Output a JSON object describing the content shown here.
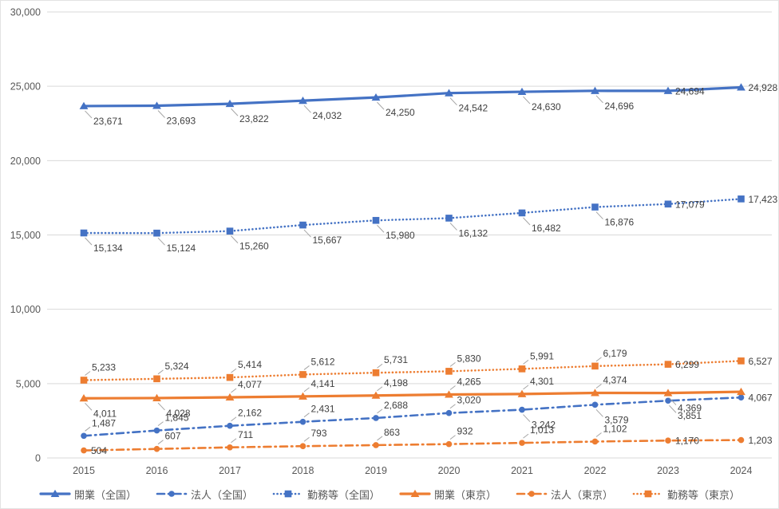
{
  "chart_data": {
    "type": "line",
    "title": "",
    "categories": [
      "2015",
      "2016",
      "2017",
      "2018",
      "2019",
      "2020",
      "2021",
      "2022",
      "2023",
      "2024"
    ],
    "y_axis": {
      "min": 0,
      "max": 30000,
      "step": 5000,
      "tick_labels": [
        "0",
        "5,000",
        "10,000",
        "15,000",
        "20,000",
        "25,000",
        "30,000"
      ]
    },
    "grid": true,
    "legend_position": "bottom",
    "colors": {
      "blue": "#4472C4",
      "orange": "#ED7D31",
      "gridline": "#D9D9D9",
      "axis_text": "#595959",
      "label_text": "#404040",
      "leader_line": "#A6A6A6"
    },
    "series": [
      {
        "name": "開業（全国）",
        "color": "#4472C4",
        "line_style": "solid",
        "marker": "triangle",
        "values": [
          23671,
          23693,
          23822,
          24032,
          24250,
          24542,
          24630,
          24696,
          24694,
          24928
        ],
        "labels": [
          "23,671",
          "23,693",
          "23,822",
          "24,032",
          "24,250",
          "24,542",
          "24,630",
          "24,696",
          "24,694",
          "24,928"
        ],
        "label_positions": [
          "b",
          "b",
          "b",
          "b",
          "b",
          "b",
          "b",
          "b",
          "r",
          "r"
        ]
      },
      {
        "name": "法人（全国）",
        "color": "#4472C4",
        "line_style": "dash-dot",
        "marker": "circle",
        "values": [
          1487,
          1845,
          2162,
          2431,
          2688,
          3020,
          3242,
          3579,
          3851,
          4067
        ],
        "labels": [
          "1,487",
          "1,845",
          "2,162",
          "2,431",
          "2,688",
          "3,020",
          "3,242",
          "3,579",
          "3,851",
          "4,067"
        ],
        "label_positions": [
          "a",
          "a",
          "a",
          "a",
          "a",
          "a",
          "b",
          "b",
          "b",
          "r"
        ]
      },
      {
        "name": "勤務等（全国）",
        "color": "#4472C4",
        "line_style": "dotted",
        "marker": "square",
        "values": [
          15134,
          15124,
          15260,
          15667,
          15980,
          16132,
          16482,
          16876,
          17079,
          17423
        ],
        "labels": [
          "15,134",
          "15,124",
          "15,260",
          "15,667",
          "15,980",
          "16,132",
          "16,482",
          "16,876",
          "17,079",
          "17,423"
        ],
        "label_positions": [
          "b",
          "b",
          "b",
          "b",
          "b",
          "b",
          "b",
          "b",
          "r",
          "r"
        ]
      },
      {
        "name": "開業（東京）",
        "color": "#ED7D31",
        "line_style": "solid",
        "marker": "triangle",
        "values": [
          4011,
          4028,
          4077,
          4141,
          4198,
          4265,
          4301,
          4374,
          4369,
          4450
        ],
        "labels": [
          "4,011",
          "4,028",
          "4,077",
          "4,141",
          "4,198",
          "4,265",
          "4,301",
          "4,374",
          "4,369",
          ""
        ],
        "label_positions": [
          "b",
          "b",
          "a",
          "a",
          "a",
          "a",
          "a",
          "a",
          "b",
          ""
        ]
      },
      {
        "name": "法人（東京）",
        "color": "#ED7D31",
        "line_style": "dash-dot",
        "marker": "circle",
        "values": [
          504,
          607,
          711,
          793,
          863,
          932,
          1013,
          1102,
          1170,
          1203
        ],
        "labels": [
          "504",
          "607",
          "711",
          "793",
          "863",
          "932",
          "1,013",
          "1,102",
          "1,170",
          "1,203"
        ],
        "label_positions": [
          "r",
          "a",
          "a",
          "a",
          "a",
          "a",
          "a",
          "a",
          "r",
          "r"
        ]
      },
      {
        "name": "勤務等（東京）",
        "color": "#ED7D31",
        "line_style": "dotted",
        "marker": "square",
        "values": [
          5233,
          5324,
          5414,
          5612,
          5731,
          5830,
          5991,
          6179,
          6299,
          6527
        ],
        "labels": [
          "5,233",
          "5,324",
          "5,414",
          "5,612",
          "5,731",
          "5,830",
          "5,991",
          "6,179",
          "6,299",
          "6,527"
        ],
        "label_positions": [
          "a",
          "a",
          "a",
          "a",
          "a",
          "a",
          "a",
          "a",
          "r",
          "r"
        ]
      }
    ]
  },
  "legend": {
    "items": [
      "開業（全国）",
      "法人（全国）",
      "勤務等（全国）",
      "開業（東京）",
      "法人（東京）",
      "勤務等（東京）"
    ]
  }
}
